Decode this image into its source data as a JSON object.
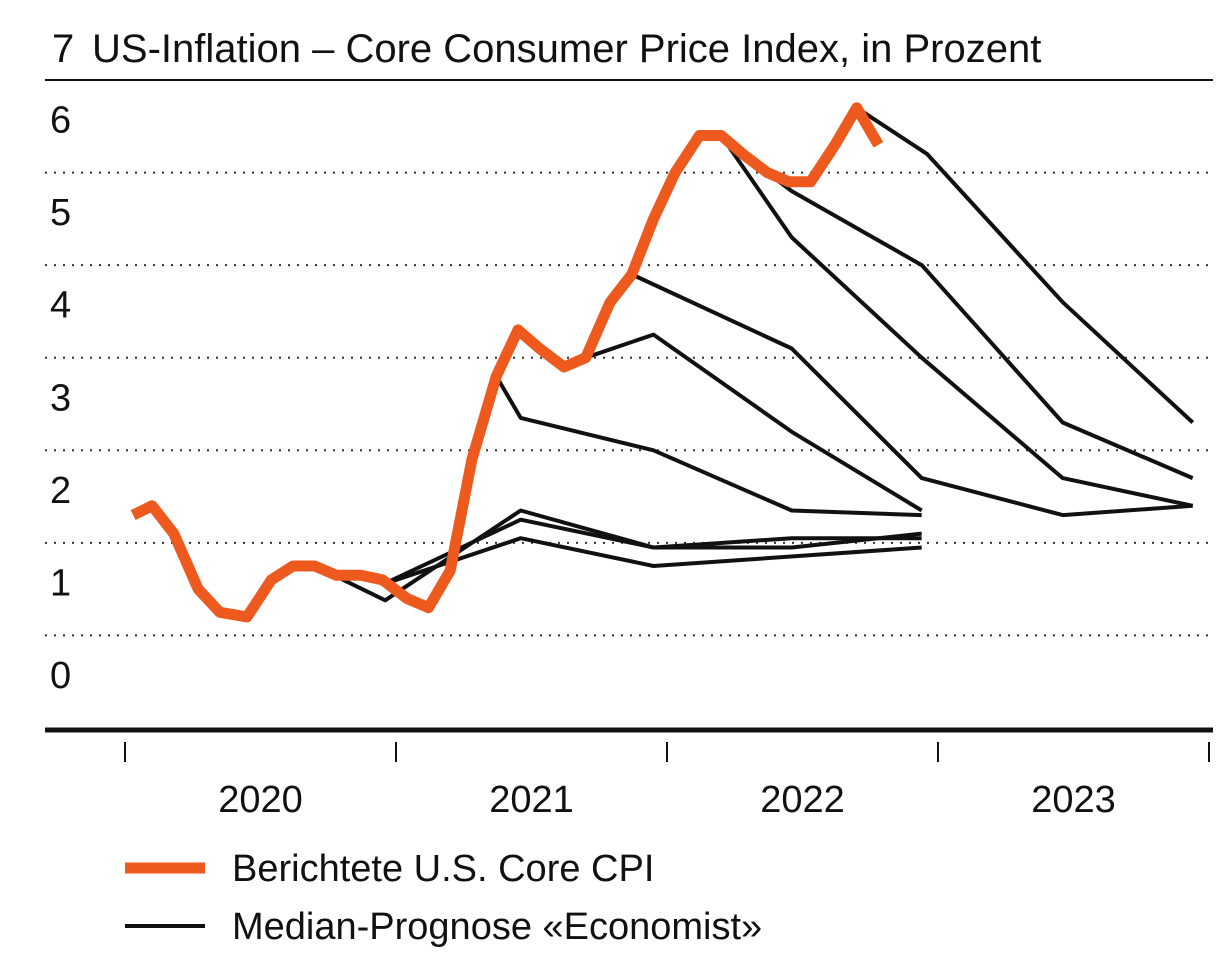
{
  "chart_data": {
    "type": "line",
    "figure_number": "7",
    "title": "US-Inflation – Core Consumer Price Index, in Prozent",
    "ylabel": "Prozent",
    "ylim": [
      0,
      7
    ],
    "y_ticks": [
      "0",
      "1",
      "2",
      "3",
      "4",
      "5",
      "6"
    ],
    "x_tick_labels": [
      "2020",
      "2021",
      "2022",
      "2023"
    ],
    "grid": true,
    "legend_position": "bottom-left",
    "colors": {
      "reported": "#ee5a1e",
      "forecast": "#111111",
      "text": "#111111"
    },
    "legend": [
      {
        "label": "Berichtete U.S. Core CPI",
        "series": "reported"
      },
      {
        "label": "Median-Prognose «Economist»",
        "series": "forecast"
      }
    ],
    "reported": {
      "name": "Berichtete U.S. Core CPI",
      "points": [
        [
          2020.03,
          2.3
        ],
        [
          2020.1,
          2.4
        ],
        [
          2020.18,
          2.1
        ],
        [
          2020.27,
          1.5
        ],
        [
          2020.35,
          1.25
        ],
        [
          2020.45,
          1.2
        ],
        [
          2020.54,
          1.6
        ],
        [
          2020.62,
          1.75
        ],
        [
          2020.7,
          1.75
        ],
        [
          2020.78,
          1.65
        ],
        [
          2020.87,
          1.65
        ],
        [
          2020.95,
          1.6
        ],
        [
          2021.04,
          1.4
        ],
        [
          2021.12,
          1.3
        ],
        [
          2021.2,
          1.7
        ],
        [
          2021.28,
          2.9
        ],
        [
          2021.37,
          3.8
        ],
        [
          2021.45,
          4.3
        ],
        [
          2021.53,
          4.1
        ],
        [
          2021.62,
          3.9
        ],
        [
          2021.7,
          4.0
        ],
        [
          2021.79,
          4.6
        ],
        [
          2021.87,
          4.9
        ],
        [
          2021.95,
          5.5
        ],
        [
          2022.03,
          6.0
        ],
        [
          2022.12,
          6.4
        ],
        [
          2022.2,
          6.4
        ],
        [
          2022.28,
          6.2
        ],
        [
          2022.37,
          6.0
        ],
        [
          2022.45,
          5.9
        ],
        [
          2022.53,
          5.9
        ],
        [
          2022.62,
          6.3
        ],
        [
          2022.7,
          6.7
        ],
        [
          2022.78,
          6.3
        ]
      ]
    },
    "forecasts": [
      {
        "name": "Prognose 1",
        "points": [
          [
            2020.7,
            1.75
          ],
          [
            2020.96,
            1.38
          ],
          [
            2021.46,
            2.35
          ],
          [
            2021.95,
            1.95
          ],
          [
            2022.46,
            1.95
          ],
          [
            2022.94,
            2.1
          ]
        ]
      },
      {
        "name": "Prognose 2",
        "points": [
          [
            2020.95,
            1.55
          ],
          [
            2021.46,
            2.25
          ],
          [
            2021.95,
            1.95
          ],
          [
            2022.46,
            2.05
          ],
          [
            2022.94,
            2.05
          ]
        ]
      },
      {
        "name": "Prognose 3",
        "points": [
          [
            2020.95,
            1.55
          ],
          [
            2021.46,
            2.05
          ],
          [
            2021.95,
            1.75
          ],
          [
            2022.94,
            1.95
          ]
        ]
      },
      {
        "name": "Prognose 4",
        "points": [
          [
            2021.37,
            3.8
          ],
          [
            2021.46,
            3.35
          ],
          [
            2021.95,
            3.0
          ],
          [
            2022.46,
            2.35
          ],
          [
            2022.94,
            2.3
          ]
        ]
      },
      {
        "name": "Prognose 5",
        "points": [
          [
            2021.7,
            4.0
          ],
          [
            2021.95,
            4.25
          ],
          [
            2022.46,
            3.2
          ],
          [
            2022.94,
            2.35
          ]
        ]
      },
      {
        "name": "Prognose 6",
        "points": [
          [
            2021.87,
            4.9
          ],
          [
            2022.46,
            4.1
          ],
          [
            2022.94,
            2.7
          ],
          [
            2023.46,
            2.3
          ],
          [
            2023.94,
            2.4
          ]
        ]
      },
      {
        "name": "Prognose 7",
        "points": [
          [
            2022.2,
            6.4
          ],
          [
            2022.46,
            5.3
          ],
          [
            2022.94,
            4.0
          ],
          [
            2023.46,
            2.7
          ],
          [
            2023.94,
            2.4
          ]
        ]
      },
      {
        "name": "Prognose 8",
        "points": [
          [
            2022.37,
            6.0
          ],
          [
            2022.46,
            5.8
          ],
          [
            2022.94,
            5.0
          ],
          [
            2023.46,
            3.3
          ],
          [
            2023.94,
            2.7
          ]
        ]
      },
      {
        "name": "Prognose 9",
        "points": [
          [
            2022.7,
            6.7
          ],
          [
            2022.96,
            6.2
          ],
          [
            2023.46,
            4.6
          ],
          [
            2023.94,
            3.3
          ]
        ]
      }
    ]
  }
}
